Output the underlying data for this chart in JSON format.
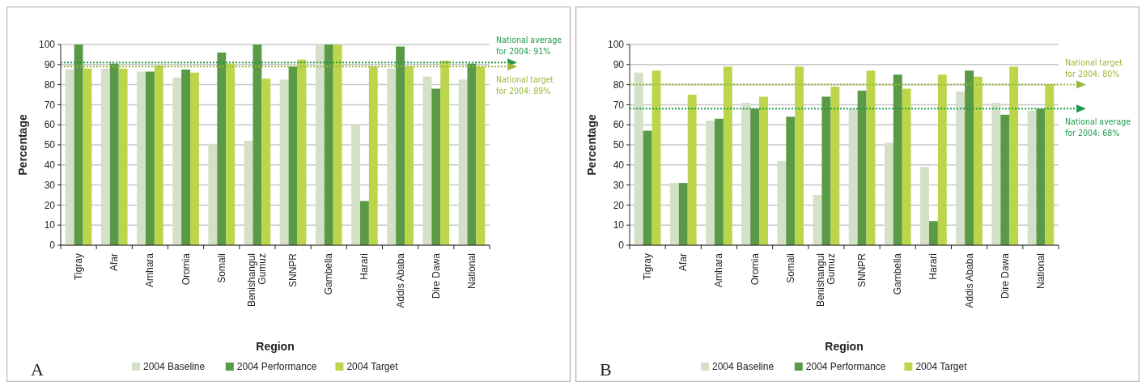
{
  "chart_data": [
    {
      "type": "bar",
      "xlabel": "Region",
      "ylabel": "Percentage",
      "categories": [
        "Tigray",
        "Afar",
        "Amhara",
        "Oromia",
        "Somali",
        "Benishangul\nGumuz",
        "SNNPR",
        "Gambella",
        "Harari",
        "Addis Ababa",
        "Dire Dawa",
        "National"
      ],
      "series": [
        {
          "name": "2004 Baseline",
          "color": "#d4e0c8",
          "values": [
            87.5,
            88,
            86.5,
            83.5,
            50.5,
            52,
            82.5,
            100,
            60,
            88,
            84,
            82.5
          ]
        },
        {
          "name": "2004 Performance",
          "color": "#5a9a46",
          "values": [
            100,
            90.5,
            86.5,
            87.5,
            96,
            100,
            89,
            100,
            22,
            99,
            78,
            90.5
          ]
        },
        {
          "name": "2004 Target",
          "color": "#bcd64c",
          "values": [
            88,
            88,
            89.5,
            86,
            90.5,
            83,
            92.5,
            100,
            89,
            89,
            92,
            89
          ]
        }
      ],
      "ylim": [
        0,
        100
      ],
      "yticks": [
        0,
        10,
        20,
        30,
        40,
        50,
        60,
        70,
        80,
        90,
        100
      ],
      "grid": "y",
      "legend": "bottom",
      "ref_lines": [
        {
          "axis": "y",
          "value": 91,
          "label": "National average\nfor 2004: 91%",
          "color": "#1f9a4a",
          "line_style": "dotted"
        },
        {
          "axis": "y",
          "value": 89,
          "label": "National target\nfor 2004: 89%",
          "color": "#9ab83a",
          "line_style": "dotted"
        }
      ],
      "annotations": [
        "A"
      ]
    },
    {
      "type": "bar",
      "xlabel": "Region",
      "ylabel": "Percentage",
      "categories": [
        "Tigray",
        "Afar",
        "Amhara",
        "Oromia",
        "Somali",
        "Benishangul\nGumuz",
        "SNNPR",
        "Gambella",
        "Harari",
        "Addis Ababa",
        "Dire Dawa",
        "National"
      ],
      "series": [
        {
          "name": "2004 Baseline",
          "color": "#d4e0c8",
          "values": [
            86,
            31,
            62,
            71,
            42,
            25,
            68,
            51,
            39,
            76.5,
            71,
            67
          ]
        },
        {
          "name": "2004 Performance",
          "color": "#5a9a46",
          "values": [
            57,
            31,
            63,
            68,
            64,
            74,
            77,
            85,
            12,
            87,
            65,
            68
          ]
        },
        {
          "name": "2004 Target",
          "color": "#bcd64c",
          "values": [
            87,
            75,
            89,
            74,
            89,
            79,
            87,
            78,
            85,
            84,
            89,
            80
          ]
        }
      ],
      "ylim": [
        0,
        100
      ],
      "yticks": [
        0,
        10,
        20,
        30,
        40,
        50,
        60,
        70,
        80,
        90,
        100
      ],
      "grid": "y",
      "legend": "bottom",
      "ref_lines": [
        {
          "axis": "y",
          "value": 80,
          "label": "National target\nfor 2004: 80%",
          "color": "#9ab83a",
          "line_style": "dotted"
        },
        {
          "axis": "y",
          "value": 68,
          "label": "National average\nfor 2004: 68%",
          "color": "#1f9a4a",
          "line_style": "dotted"
        }
      ],
      "annotations": [
        "B"
      ]
    }
  ]
}
